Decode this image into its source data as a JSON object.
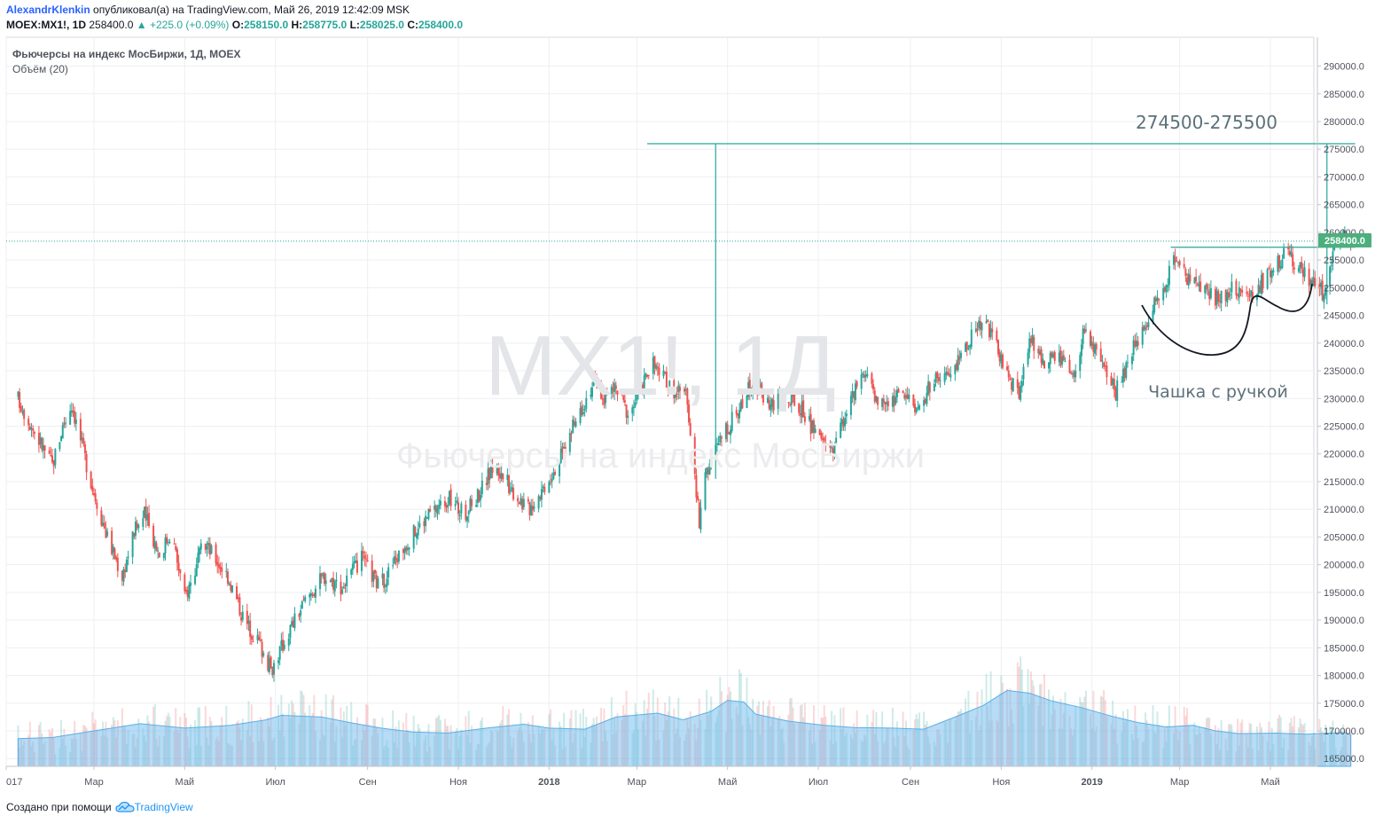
{
  "header": {
    "author": "AlexandrKlenkin",
    "published_text": "опубликовал(а) на TradingView.com, Май 26, 2019 12:42:09 MSK",
    "symbol_line": "MOEX:MX1!, 1D",
    "last_price": "258400.0",
    "change": "+225.0 (+0.09%)",
    "o_label": "O:",
    "o_value": "258150.0",
    "h_label": "H:",
    "h_value": "258775.0",
    "l_label": "L:",
    "l_value": "258025.0",
    "c_label": "C:",
    "c_value": "258400.0"
  },
  "legend": {
    "instrument": "Фьючерсы на индекс МосБиржи, 1Д, MOEX",
    "volume": "Объём (20)"
  },
  "watermark": {
    "symbol": "MX1!, 1Д",
    "name": "Фьючерсы на индекс МосБиржи"
  },
  "annotations": {
    "target": "274500-275500",
    "pattern": "Чашка с ручкой"
  },
  "price_tag": "258400.0",
  "footer": {
    "created_with": "Создано при помощи",
    "brand": "TradingView"
  },
  "colors": {
    "up": "#26a69a",
    "down": "#ef5350",
    "volume_ma": "#7cc0ee",
    "grid": "#eceff2",
    "axis_text": "#50535e",
    "author": "#2962ff",
    "price_tag": "#4caf7d"
  },
  "chart_data": {
    "type": "candlestick",
    "title": "Фьючерсы на индекс МосБиржи, 1Д, MOEX",
    "ylim": [
      162000,
      294500
    ],
    "y_ticks": [
      165000,
      170000,
      175000,
      180000,
      185000,
      190000,
      195000,
      200000,
      205000,
      210000,
      215000,
      220000,
      225000,
      230000,
      235000,
      240000,
      245000,
      250000,
      255000,
      260000,
      265000,
      270000,
      275000,
      280000,
      285000,
      290000
    ],
    "y_tick_labels": [
      "165000.0",
      "170000.0",
      "175000.0",
      "180000.0",
      "185000.0",
      "190000.0",
      "195000.0",
      "200000.0",
      "205000.0",
      "210000.0",
      "215000.0",
      "220000.0",
      "225000.0",
      "230000.0",
      "235000.0",
      "240000.0",
      "245000.0",
      "250000.0",
      "255000.0",
      "260000.0",
      "265000.0",
      "270000.0",
      "275000.0",
      "280000.0",
      "285000.0",
      "290000.0"
    ],
    "x_tick_labels": [
      "017",
      "Мар",
      "Май",
      "Июл",
      "Сен",
      "Ноя",
      "2018",
      "Мар",
      "Май",
      "Июл",
      "Сен",
      "Ноя",
      "2019",
      "Мар",
      "Май"
    ],
    "x_ticks": [
      "2017-01",
      "2017-03",
      "2017-05",
      "2017-07",
      "2017-09",
      "2017-11",
      "2018-01",
      "2018-03",
      "2018-05",
      "2018-07",
      "2018-09",
      "2018-11",
      "2019-01",
      "2019-03",
      "2019-05"
    ],
    "close_path": [
      [
        "2017-01-09",
        230000
      ],
      [
        "2017-01-20",
        224000
      ],
      [
        "2017-02-01",
        218000
      ],
      [
        "2017-02-08",
        225000
      ],
      [
        "2017-02-14",
        229000
      ],
      [
        "2017-02-28",
        214000
      ],
      [
        "2017-03-10",
        205000
      ],
      [
        "2017-03-20",
        198000
      ],
      [
        "2017-03-28",
        206000
      ],
      [
        "2017-04-04",
        209000
      ],
      [
        "2017-04-14",
        202000
      ],
      [
        "2017-04-22",
        206000
      ],
      [
        "2017-05-01",
        194000
      ],
      [
        "2017-05-08",
        199000
      ],
      [
        "2017-05-14",
        204000
      ],
      [
        "2017-05-30",
        198000
      ],
      [
        "2017-06-10",
        190000
      ],
      [
        "2017-06-20",
        186000
      ],
      [
        "2017-06-28",
        181000
      ],
      [
        "2017-07-10",
        188000
      ],
      [
        "2017-07-22",
        194000
      ],
      [
        "2017-08-03",
        198000
      ],
      [
        "2017-08-15",
        196000
      ],
      [
        "2017-08-28",
        201000
      ],
      [
        "2017-09-09",
        196000
      ],
      [
        "2017-09-20",
        201000
      ],
      [
        "2017-09-30",
        205000
      ],
      [
        "2017-10-12",
        209000
      ],
      [
        "2017-10-25",
        212000
      ],
      [
        "2017-11-05",
        209000
      ],
      [
        "2017-11-15",
        213000
      ],
      [
        "2017-11-25",
        218000
      ],
      [
        "2017-12-06",
        214000
      ],
      [
        "2017-12-18",
        210000
      ],
      [
        "2017-12-28",
        214000
      ],
      [
        "2018-01-10",
        220000
      ],
      [
        "2018-01-22",
        228000
      ],
      [
        "2018-01-31",
        233000
      ],
      [
        "2018-02-07",
        230000
      ],
      [
        "2018-02-14",
        232000
      ],
      [
        "2018-02-24",
        227000
      ],
      [
        "2018-03-05",
        233000
      ],
      [
        "2018-03-12",
        236000
      ],
      [
        "2018-03-24",
        232000
      ],
      [
        "2018-04-04",
        230000
      ],
      [
        "2018-04-09",
        215000
      ],
      [
        "2018-04-12",
        208000
      ],
      [
        "2018-04-17",
        217000
      ],
      [
        "2018-04-25",
        222000
      ],
      [
        "2018-05-08",
        228000
      ],
      [
        "2018-05-18",
        233000
      ],
      [
        "2018-05-30",
        229000
      ],
      [
        "2018-06-09",
        230000
      ],
      [
        "2018-06-20",
        228000
      ],
      [
        "2018-06-30",
        223000
      ],
      [
        "2018-07-11",
        221000
      ],
      [
        "2018-07-20",
        228000
      ],
      [
        "2018-07-31",
        234000
      ],
      [
        "2018-08-13",
        229000
      ],
      [
        "2018-08-28",
        231000
      ],
      [
        "2018-09-07",
        228000
      ],
      [
        "2018-09-15",
        233000
      ],
      [
        "2018-09-28",
        234000
      ],
      [
        "2018-10-09",
        240000
      ],
      [
        "2018-10-20",
        245000
      ],
      [
        "2018-10-31",
        238000
      ],
      [
        "2018-11-06",
        233000
      ],
      [
        "2018-11-13",
        231000
      ],
      [
        "2018-11-21",
        241000
      ],
      [
        "2018-11-30",
        236000
      ],
      [
        "2018-12-09",
        238000
      ],
      [
        "2018-12-20",
        233000
      ],
      [
        "2018-12-27",
        243000
      ],
      [
        "2019-01-07",
        236000
      ],
      [
        "2019-01-17",
        231000
      ],
      [
        "2019-01-27",
        238000
      ],
      [
        "2019-02-06",
        244000
      ],
      [
        "2019-02-18",
        250000
      ],
      [
        "2019-02-27",
        256000
      ],
      [
        "2019-03-07",
        251000
      ],
      [
        "2019-03-18",
        249000
      ],
      [
        "2019-03-27",
        248000
      ],
      [
        "2019-04-08",
        250000
      ],
      [
        "2019-04-19",
        248000
      ],
      [
        "2019-04-30",
        253000
      ],
      [
        "2019-05-10",
        256000
      ],
      [
        "2019-05-20",
        254000
      ],
      [
        "2019-05-29",
        251000
      ],
      [
        "2019-06-06",
        249000
      ],
      [
        "2019-06-12",
        257000
      ],
      [
        "2019-06-18",
        259000
      ],
      [
        "2019-06-24",
        258400
      ]
    ],
    "volume_ma_path": [
      [
        "2017-01-09",
        168600
      ],
      [
        "2017-02-01",
        168800
      ],
      [
        "2017-03-01",
        170000
      ],
      [
        "2017-04-01",
        171300
      ],
      [
        "2017-05-01",
        170500
      ],
      [
        "2017-06-01",
        171000
      ],
      [
        "2017-06-25",
        172000
      ],
      [
        "2017-07-05",
        172800
      ],
      [
        "2017-08-01",
        172500
      ],
      [
        "2017-08-20",
        171500
      ],
      [
        "2017-09-10",
        170500
      ],
      [
        "2017-10-01",
        169800
      ],
      [
        "2017-10-25",
        169600
      ],
      [
        "2017-11-20",
        170500
      ],
      [
        "2017-12-15",
        171200
      ],
      [
        "2018-01-01",
        170500
      ],
      [
        "2018-01-25",
        170300
      ],
      [
        "2018-02-15",
        172500
      ],
      [
        "2018-03-15",
        173200
      ],
      [
        "2018-04-01",
        172000
      ],
      [
        "2018-04-20",
        173500
      ],
      [
        "2018-05-01",
        175500
      ],
      [
        "2018-05-12",
        175200
      ],
      [
        "2018-05-20",
        173000
      ],
      [
        "2018-06-10",
        171800
      ],
      [
        "2018-07-05",
        171000
      ],
      [
        "2018-07-25",
        170600
      ],
      [
        "2018-08-20",
        170500
      ],
      [
        "2018-09-10",
        170300
      ],
      [
        "2018-10-01",
        172500
      ],
      [
        "2018-10-20",
        174600
      ],
      [
        "2018-11-05",
        177300
      ],
      [
        "2018-11-20",
        176800
      ],
      [
        "2018-12-05",
        175400
      ],
      [
        "2018-12-25",
        174200
      ],
      [
        "2019-01-15",
        172600
      ],
      [
        "2019-02-01",
        171500
      ],
      [
        "2019-02-20",
        170700
      ],
      [
        "2019-03-10",
        171000
      ],
      [
        "2019-03-25",
        170000
      ],
      [
        "2019-04-10",
        169500
      ],
      [
        "2019-05-05",
        169600
      ],
      [
        "2019-05-25",
        169400
      ],
      [
        "2019-06-20",
        169700
      ],
      [
        "2019-06-24",
        169300
      ]
    ],
    "target_line": {
      "value": 276000,
      "from": "2018-03-08",
      "to": "2019-06-27"
    },
    "measure_lines": [
      {
        "x": "2018-04-23",
        "from": 215500,
        "to": 276000
      },
      {
        "x": "2019-06-08",
        "from": 247000,
        "to": 276000
      }
    ],
    "breakout_level": {
      "value": 257300,
      "from": "2019-02-23",
      "to": "2019-06-27"
    },
    "current_price": 258400,
    "series": [
      {
        "name": "MOEX:MX1!",
        "kind": "ohlc"
      },
      {
        "name": "Объём (20)",
        "kind": "volume"
      }
    ]
  }
}
